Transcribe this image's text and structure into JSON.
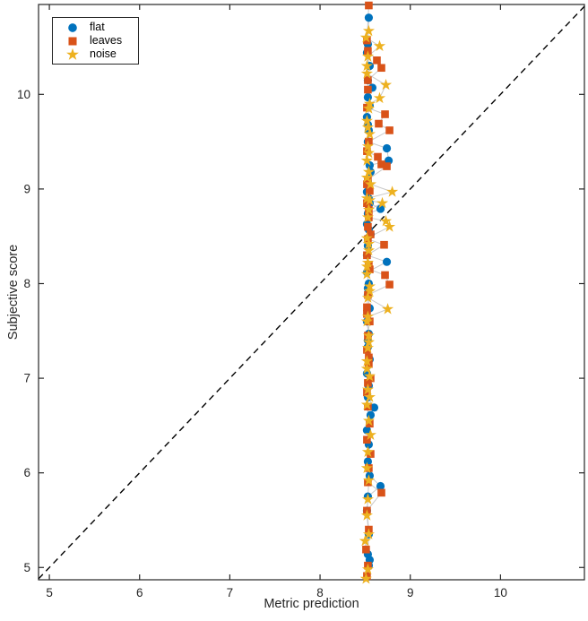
{
  "figure": {
    "background": "#ffffff",
    "axes_color": "#262626",
    "connector_color": "#c9c9c9"
  },
  "chart_data": {
    "type": "scatter",
    "title": "",
    "xlabel": "Metric prediction",
    "ylabel": "Subjective score",
    "xlim": [
      4.88,
      10.93
    ],
    "ylim": [
      4.87,
      10.95
    ],
    "xticks": [
      5,
      6,
      7,
      8,
      9,
      10
    ],
    "yticks": [
      5,
      6,
      7,
      8,
      9,
      10
    ],
    "grid": false,
    "legend": {
      "position": "top-left",
      "entries": [
        "flat",
        "leaves",
        "noise"
      ]
    },
    "identity_line": {
      "style": "dashed",
      "color": "#000000",
      "from": [
        4.88,
        4.88
      ],
      "to": [
        10.93,
        10.93
      ]
    },
    "series": [
      {
        "name": "flat",
        "marker": "circle",
        "color": "#0072BD",
        "points": [
          [
            8.54,
            10.81
          ],
          [
            8.53,
            10.53
          ],
          [
            8.52,
            10.44
          ],
          [
            8.55,
            10.3
          ],
          [
            8.53,
            10.15
          ],
          [
            8.58,
            10.07
          ],
          [
            8.53,
            9.97
          ],
          [
            8.55,
            9.88
          ],
          [
            8.52,
            9.76
          ],
          [
            8.53,
            9.68
          ],
          [
            8.54,
            9.62
          ],
          [
            8.53,
            9.5
          ],
          [
            8.74,
            9.43
          ],
          [
            8.76,
            9.3
          ],
          [
            8.55,
            9.25
          ],
          [
            8.56,
            9.18
          ],
          [
            8.53,
            9.08
          ],
          [
            8.52,
            8.97
          ],
          [
            8.54,
            8.9
          ],
          [
            8.55,
            8.85
          ],
          [
            8.67,
            8.79
          ],
          [
            8.53,
            8.74
          ],
          [
            8.52,
            8.63
          ],
          [
            8.54,
            8.57
          ],
          [
            8.56,
            8.52
          ],
          [
            8.53,
            8.4
          ],
          [
            8.52,
            8.3
          ],
          [
            8.74,
            8.23
          ],
          [
            8.52,
            8.12
          ],
          [
            8.54,
            8.0
          ],
          [
            8.53,
            7.95
          ],
          [
            8.53,
            7.88
          ],
          [
            8.55,
            7.74
          ],
          [
            8.52,
            7.6
          ],
          [
            8.54,
            7.47
          ],
          [
            8.53,
            7.4
          ],
          [
            8.53,
            7.33
          ],
          [
            8.55,
            7.2
          ],
          [
            8.52,
            7.05
          ],
          [
            8.54,
            6.92
          ],
          [
            8.53,
            6.8
          ],
          [
            8.6,
            6.69
          ],
          [
            8.56,
            6.61
          ],
          [
            8.52,
            6.45
          ],
          [
            8.54,
            6.3
          ],
          [
            8.53,
            6.12
          ],
          [
            8.55,
            5.97
          ],
          [
            8.67,
            5.86
          ],
          [
            8.53,
            5.75
          ],
          [
            8.52,
            5.6
          ],
          [
            8.54,
            5.35
          ],
          [
            8.53,
            5.14
          ],
          [
            8.55,
            5.08
          ],
          [
            8.54,
            5.02
          ]
        ]
      },
      {
        "name": "leaves",
        "marker": "square",
        "color": "#D95319",
        "points": [
          [
            8.54,
            10.94
          ],
          [
            8.52,
            10.57
          ],
          [
            8.53,
            10.46
          ],
          [
            8.63,
            10.36
          ],
          [
            8.68,
            10.28
          ],
          [
            8.53,
            10.15
          ],
          [
            8.53,
            10.05
          ],
          [
            8.52,
            9.86
          ],
          [
            8.72,
            9.79
          ],
          [
            8.65,
            9.69
          ],
          [
            8.77,
            9.62
          ],
          [
            8.54,
            9.5
          ],
          [
            8.52,
            9.4
          ],
          [
            8.64,
            9.34
          ],
          [
            8.68,
            9.26
          ],
          [
            8.74,
            9.24
          ],
          [
            8.53,
            9.1
          ],
          [
            8.52,
            9.05
          ],
          [
            8.55,
            8.98
          ],
          [
            8.52,
            8.85
          ],
          [
            8.54,
            8.78
          ],
          [
            8.54,
            8.7
          ],
          [
            8.53,
            8.6
          ],
          [
            8.56,
            8.52
          ],
          [
            8.53,
            8.47
          ],
          [
            8.71,
            8.41
          ],
          [
            8.52,
            8.3
          ],
          [
            8.54,
            8.2
          ],
          [
            8.55,
            8.15
          ],
          [
            8.72,
            8.09
          ],
          [
            8.77,
            7.99
          ],
          [
            8.53,
            7.88
          ],
          [
            8.52,
            7.75
          ],
          [
            8.52,
            7.68
          ],
          [
            8.55,
            7.6
          ],
          [
            8.53,
            7.45
          ],
          [
            8.52,
            7.3
          ],
          [
            8.54,
            7.22
          ],
          [
            8.54,
            7.15
          ],
          [
            8.56,
            7.0
          ],
          [
            8.53,
            6.95
          ],
          [
            8.52,
            6.85
          ],
          [
            8.53,
            6.7
          ],
          [
            8.55,
            6.52
          ],
          [
            8.52,
            6.35
          ],
          [
            8.56,
            6.2
          ],
          [
            8.54,
            6.05
          ],
          [
            8.53,
            5.9
          ],
          [
            8.68,
            5.79
          ],
          [
            8.52,
            5.6
          ],
          [
            8.54,
            5.4
          ],
          [
            8.51,
            5.19
          ],
          [
            8.53,
            5.02
          ],
          [
            8.52,
            4.91
          ]
        ]
      },
      {
        "name": "noise",
        "marker": "star",
        "color": "#EDB120",
        "points": [
          [
            8.54,
            10.67
          ],
          [
            8.51,
            10.6
          ],
          [
            8.66,
            10.51
          ],
          [
            8.53,
            10.4
          ],
          [
            8.52,
            10.3
          ],
          [
            8.52,
            10.22
          ],
          [
            8.73,
            10.1
          ],
          [
            8.66,
            9.96
          ],
          [
            8.55,
            9.9
          ],
          [
            8.54,
            9.85
          ],
          [
            8.52,
            9.72
          ],
          [
            8.53,
            9.65
          ],
          [
            8.55,
            9.58
          ],
          [
            8.53,
            9.45
          ],
          [
            8.54,
            9.38
          ],
          [
            8.52,
            9.3
          ],
          [
            8.54,
            9.18
          ],
          [
            8.52,
            9.12
          ],
          [
            8.56,
            9.05
          ],
          [
            8.8,
            8.97
          ],
          [
            8.52,
            8.9
          ],
          [
            8.55,
            8.88
          ],
          [
            8.69,
            8.85
          ],
          [
            8.54,
            8.78
          ],
          [
            8.53,
            8.7
          ],
          [
            8.73,
            8.66
          ],
          [
            8.77,
            8.6
          ],
          [
            8.52,
            8.48
          ],
          [
            8.54,
            8.42
          ],
          [
            8.54,
            8.35
          ],
          [
            8.53,
            8.22
          ],
          [
            8.52,
            8.18
          ],
          [
            8.52,
            8.1
          ],
          [
            8.55,
            7.97
          ],
          [
            8.55,
            7.92
          ],
          [
            8.53,
            7.85
          ],
          [
            8.75,
            7.73
          ],
          [
            8.53,
            7.65
          ],
          [
            8.52,
            7.6
          ],
          [
            8.54,
            7.45
          ],
          [
            8.54,
            7.38
          ],
          [
            8.53,
            7.32
          ],
          [
            8.52,
            7.18
          ],
          [
            8.52,
            7.1
          ],
          [
            8.55,
            7.02
          ],
          [
            8.53,
            6.88
          ],
          [
            8.55,
            6.8
          ],
          [
            8.52,
            6.72
          ],
          [
            8.54,
            6.55
          ],
          [
            8.56,
            6.4
          ],
          [
            8.53,
            6.22
          ],
          [
            8.52,
            6.05
          ],
          [
            8.54,
            5.92
          ],
          [
            8.53,
            5.72
          ],
          [
            8.52,
            5.55
          ],
          [
            8.54,
            5.35
          ],
          [
            8.5,
            5.28
          ],
          [
            8.53,
            4.98
          ],
          [
            8.51,
            4.88
          ]
        ]
      }
    ]
  }
}
